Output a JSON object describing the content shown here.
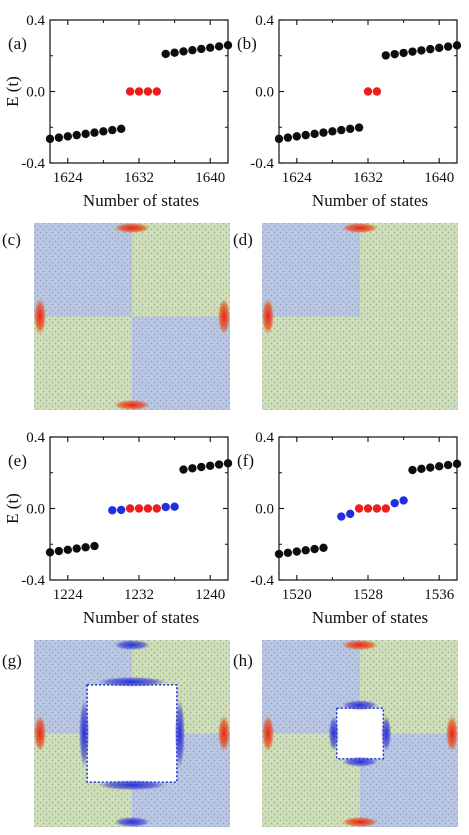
{
  "colors": {
    "black": "#0d0d0d",
    "red": "#ee1c1c",
    "blue": "#1f2fe0",
    "region_blue": "#b9c7e6",
    "region_green": "#cfe0b8",
    "lattice": "#8c949c"
  },
  "chart_data": [
    {
      "type": "scatter",
      "panel_label": "(a)",
      "xlabel": "Number of states",
      "ylabel": "E (t)",
      "xlim": [
        1622,
        1642
      ],
      "ylim": [
        -0.4,
        0.4
      ],
      "xticks": [
        1624,
        1632,
        1640
      ],
      "xtick_labels": [
        "1624",
        "1632",
        "1640"
      ],
      "yticks": [
        -0.4,
        0.0,
        0.4
      ],
      "ytick_labels": [
        "-0.4",
        "0.0",
        "0.4"
      ],
      "series": [
        {
          "color": "black",
          "points": [
            [
              1622,
              -0.265
            ],
            [
              1623,
              -0.258
            ],
            [
              1624,
              -0.251
            ],
            [
              1625,
              -0.244
            ],
            [
              1626,
              -0.237
            ],
            [
              1627,
              -0.23
            ],
            [
              1628,
              -0.223
            ],
            [
              1629,
              -0.216
            ],
            [
              1630,
              -0.209
            ],
            [
              1635,
              0.21
            ],
            [
              1636,
              0.217
            ],
            [
              1637,
              0.224
            ],
            [
              1638,
              0.231
            ],
            [
              1639,
              0.238
            ],
            [
              1640,
              0.245
            ],
            [
              1641,
              0.252
            ],
            [
              1642,
              0.259
            ]
          ]
        },
        {
          "color": "red",
          "points": [
            [
              1631,
              0.0
            ],
            [
              1632,
              0.0
            ],
            [
              1633,
              0.0
            ],
            [
              1634,
              0.0
            ]
          ]
        }
      ]
    },
    {
      "type": "scatter",
      "panel_label": "(b)",
      "xlabel": "Number of states",
      "ylabel": "",
      "xlim": [
        1622,
        1642
      ],
      "ylim": [
        -0.4,
        0.4
      ],
      "xticks": [
        1624,
        1632,
        1640
      ],
      "xtick_labels": [
        "1624",
        "1632",
        "1640"
      ],
      "yticks": [
        -0.4,
        0.0,
        0.4
      ],
      "ytick_labels": [
        "-0.4",
        "0.0",
        "0.4"
      ],
      "series": [
        {
          "color": "black",
          "points": [
            [
              1622,
              -0.265
            ],
            [
              1623,
              -0.258
            ],
            [
              1624,
              -0.251
            ],
            [
              1625,
              -0.244
            ],
            [
              1626,
              -0.237
            ],
            [
              1627,
              -0.23
            ],
            [
              1628,
              -0.223
            ],
            [
              1629,
              -0.216
            ],
            [
              1630,
              -0.209
            ],
            [
              1631,
              -0.202
            ],
            [
              1634,
              0.202
            ],
            [
              1635,
              0.209
            ],
            [
              1636,
              0.216
            ],
            [
              1637,
              0.223
            ],
            [
              1638,
              0.23
            ],
            [
              1639,
              0.237
            ],
            [
              1640,
              0.244
            ],
            [
              1641,
              0.251
            ],
            [
              1642,
              0.258
            ]
          ]
        },
        {
          "color": "red",
          "points": [
            [
              1632,
              0.0
            ],
            [
              1633,
              0.0
            ]
          ]
        }
      ]
    },
    {
      "type": "scatter",
      "panel_label": "(e)",
      "xlabel": "Number of states",
      "ylabel": "E (t)",
      "xlim": [
        1222,
        1242
      ],
      "ylim": [
        -0.4,
        0.4
      ],
      "xticks": [
        1224,
        1232,
        1240
      ],
      "xtick_labels": [
        "1224",
        "1232",
        "1240"
      ],
      "yticks": [
        -0.4,
        0.0,
        0.4
      ],
      "ytick_labels": [
        "-0.4",
        "0.0",
        "0.4"
      ],
      "series": [
        {
          "color": "black",
          "points": [
            [
              1222,
              -0.245
            ],
            [
              1223,
              -0.238
            ],
            [
              1224,
              -0.231
            ],
            [
              1225,
              -0.224
            ],
            [
              1226,
              -0.217
            ],
            [
              1227,
              -0.21
            ],
            [
              1237,
              0.218
            ],
            [
              1238,
              0.225
            ],
            [
              1239,
              0.232
            ],
            [
              1240,
              0.239
            ],
            [
              1241,
              0.246
            ],
            [
              1242,
              0.253
            ]
          ]
        },
        {
          "color": "blue",
          "points": [
            [
              1229,
              -0.01
            ],
            [
              1230,
              -0.008
            ],
            [
              1235,
              0.008
            ],
            [
              1236,
              0.01
            ]
          ]
        },
        {
          "color": "red",
          "points": [
            [
              1231,
              0.0
            ],
            [
              1232,
              0.0
            ],
            [
              1233,
              0.0
            ],
            [
              1234,
              0.0
            ]
          ]
        }
      ]
    },
    {
      "type": "scatter",
      "panel_label": "(f)",
      "xlabel": "Number of states",
      "ylabel": "",
      "xlim": [
        1518,
        1538
      ],
      "ylim": [
        -0.4,
        0.4
      ],
      "xticks": [
        1520,
        1528,
        1536
      ],
      "xtick_labels": [
        "1520",
        "1528",
        "1536"
      ],
      "yticks": [
        -0.4,
        0.0,
        0.4
      ],
      "ytick_labels": [
        "-0.4",
        "0.0",
        "0.4"
      ],
      "series": [
        {
          "color": "black",
          "points": [
            [
              1518,
              -0.255
            ],
            [
              1519,
              -0.248
            ],
            [
              1520,
              -0.241
            ],
            [
              1521,
              -0.234
            ],
            [
              1522,
              -0.227
            ],
            [
              1523,
              -0.22
            ],
            [
              1533,
              0.215
            ],
            [
              1534,
              0.222
            ],
            [
              1535,
              0.229
            ],
            [
              1536,
              0.236
            ],
            [
              1537,
              0.243
            ],
            [
              1538,
              0.25
            ]
          ]
        },
        {
          "color": "blue",
          "points": [
            [
              1525,
              -0.045
            ],
            [
              1526,
              -0.03
            ],
            [
              1531,
              0.03
            ],
            [
              1532,
              0.045
            ]
          ]
        },
        {
          "color": "red",
          "points": [
            [
              1527,
              0.0
            ],
            [
              1528,
              0.0
            ],
            [
              1529,
              0.0
            ],
            [
              1530,
              0.0
            ]
          ]
        }
      ]
    }
  ],
  "maps": [
    {
      "panel_label": "(c)",
      "layout": "four-quadrant",
      "hole": null,
      "quadrants": [
        "blue",
        "green",
        "green",
        "blue"
      ],
      "spots": [
        {
          "pos": "left-mid",
          "color": "red"
        },
        {
          "pos": "right-mid",
          "color": "red"
        },
        {
          "pos": "top-mid",
          "color": "red"
        },
        {
          "pos": "bottom-mid",
          "color": "red"
        }
      ]
    },
    {
      "panel_label": "(d)",
      "layout": "single-blue-quadrant",
      "hole": null,
      "quadrants": [
        "blue",
        "green",
        "green",
        "green"
      ],
      "spots": [
        {
          "pos": "left-mid",
          "color": "red"
        },
        {
          "pos": "top-mid",
          "color": "red"
        }
      ]
    },
    {
      "panel_label": "(g)",
      "layout": "four-quadrant",
      "hole": 0.52,
      "quadrants": [
        "blue",
        "green",
        "green",
        "blue"
      ],
      "spots": [
        {
          "pos": "left-mid",
          "color": "red"
        },
        {
          "pos": "right-mid",
          "color": "red"
        },
        {
          "pos": "top-mid",
          "color": "blue"
        },
        {
          "pos": "bottom-mid",
          "color": "blue"
        },
        {
          "pos": "hole-left",
          "color": "blue"
        },
        {
          "pos": "hole-right",
          "color": "blue"
        },
        {
          "pos": "hole-top",
          "color": "blue"
        },
        {
          "pos": "hole-bottom",
          "color": "blue"
        }
      ]
    },
    {
      "panel_label": "(h)",
      "layout": "four-quadrant",
      "hole": 0.27,
      "quadrants": [
        "blue",
        "green",
        "green",
        "blue"
      ],
      "spots": [
        {
          "pos": "left-mid",
          "color": "red"
        },
        {
          "pos": "right-mid",
          "color": "red"
        },
        {
          "pos": "top-mid",
          "color": "red"
        },
        {
          "pos": "bottom-mid",
          "color": "red"
        },
        {
          "pos": "hole-left",
          "color": "blue"
        },
        {
          "pos": "hole-right",
          "color": "blue"
        },
        {
          "pos": "hole-top",
          "color": "blue"
        },
        {
          "pos": "hole-bottom",
          "color": "blue"
        }
      ]
    }
  ]
}
